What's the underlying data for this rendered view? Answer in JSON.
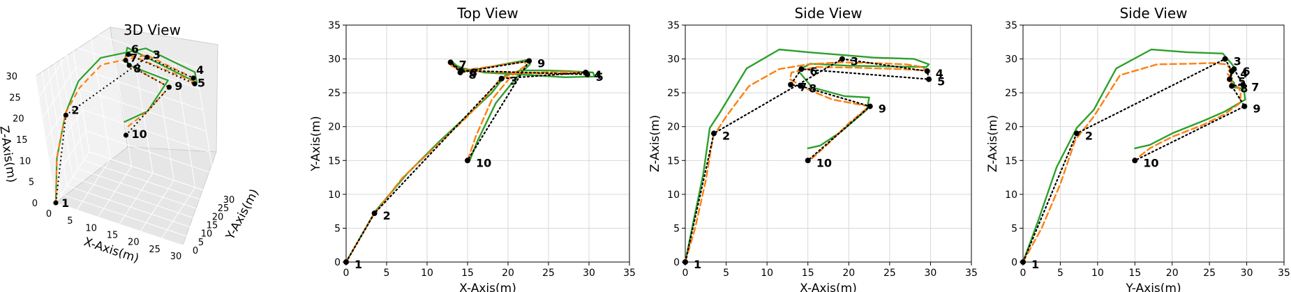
{
  "chart_data": [
    {
      "type": "line",
      "projection": "3d",
      "title": "3D View",
      "xlabel": "X-Axis(m)",
      "ylabel": "Y-Axis(m)",
      "zlabel": "Z-Axis(m)",
      "xlim": [
        0,
        30
      ],
      "ylim": [
        0,
        30
      ],
      "zlim": [
        0,
        30
      ],
      "xticks": [
        0,
        5,
        10,
        15,
        20,
        25,
        30
      ],
      "yticks": [
        0,
        5,
        10,
        15,
        20,
        25,
        30
      ],
      "zticks": [
        0,
        5,
        10,
        15,
        20,
        25,
        30
      ],
      "grid": true,
      "waypoints": [
        {
          "label": "1",
          "x": 0,
          "y": 0,
          "z": 0
        },
        {
          "label": "2",
          "x": 3.5,
          "y": 7.2,
          "z": 19
        },
        {
          "label": "3",
          "x": 19.2,
          "y": 27.1,
          "z": 30
        },
        {
          "label": "4",
          "x": 29.6,
          "y": 28,
          "z": 28.2
        },
        {
          "label": "5",
          "x": 29.8,
          "y": 27.7,
          "z": 27
        },
        {
          "label": "6",
          "x": 14.2,
          "y": 28.3,
          "z": 28.5
        },
        {
          "label": "7",
          "x": 12.9,
          "y": 29.5,
          "z": 26.2
        },
        {
          "label": "8",
          "x": 14.1,
          "y": 28,
          "z": 26
        },
        {
          "label": "9",
          "x": 22.6,
          "y": 29.7,
          "z": 23
        },
        {
          "label": "10",
          "x": 15,
          "y": 15,
          "z": 15
        }
      ],
      "series": [
        {
          "role": "reference",
          "color": "#000000",
          "style": "dotted"
        },
        {
          "role": "path-a",
          "color": "#ff7f0e",
          "style": "dashed"
        },
        {
          "role": "path-b",
          "color": "#2ca02c",
          "style": "solid"
        }
      ]
    },
    {
      "type": "line",
      "title": "Top View",
      "xlabel": "X-Axis(m)",
      "ylabel": "Y-Axis(m)",
      "xlim": [
        0,
        35
      ],
      "ylim": [
        0,
        35
      ],
      "xticks": [
        0,
        5,
        10,
        15,
        20,
        25,
        30,
        35
      ],
      "yticks": [
        0,
        5,
        10,
        15,
        20,
        25,
        30,
        35
      ],
      "grid": true,
      "points": [
        {
          "label": "1",
          "x": 0,
          "y": 0
        },
        {
          "label": "2",
          "x": 3.5,
          "y": 7.2
        },
        {
          "label": "3",
          "x": 19.2,
          "y": 27.1
        },
        {
          "label": "4",
          "x": 29.6,
          "y": 28
        },
        {
          "label": "5",
          "x": 29.8,
          "y": 27.7
        },
        {
          "label": "6",
          "x": 14.2,
          "y": 28.3
        },
        {
          "label": "7",
          "x": 12.9,
          "y": 29.5
        },
        {
          "label": "8",
          "x": 14.1,
          "y": 28
        },
        {
          "label": "9",
          "x": 22.6,
          "y": 29.7
        },
        {
          "label": "10",
          "x": 15,
          "y": 15
        }
      ],
      "series": [
        {
          "role": "reference",
          "color": "#000000",
          "style": "dotted",
          "x": [
            0,
            3.5,
            19.2,
            29.6,
            29.8,
            14.2,
            12.9,
            14.1,
            22.6,
            15
          ],
          "y": [
            0,
            7.2,
            27.1,
            28,
            27.7,
            28.3,
            29.5,
            28,
            29.7,
            15
          ]
        },
        {
          "role": "path-a",
          "color": "#ff7f0e",
          "style": "dashed",
          "x": [
            0,
            3.4,
            7,
            11,
            15,
            17.3,
            19,
            20.5,
            24,
            27,
            29.5,
            29.6,
            26,
            22,
            16,
            14.2,
            13,
            12.9,
            14.3,
            18,
            22,
            22.3,
            20.5,
            18,
            16,
            15
          ],
          "y": [
            0,
            7,
            12.5,
            17,
            21.5,
            24.5,
            27,
            27.8,
            28,
            28.1,
            28,
            27.9,
            27.8,
            27.9,
            28.2,
            28.3,
            29,
            29.3,
            28.3,
            28.9,
            29.6,
            29.1,
            27.6,
            24,
            18.5,
            15
          ]
        },
        {
          "role": "path-b",
          "color": "#2ca02c",
          "style": "solid",
          "x": [
            0,
            3.6,
            7.5,
            11.5,
            15.5,
            18,
            19.6,
            21.5,
            24.5,
            27.5,
            30.5,
            30.7,
            27,
            23,
            17,
            14.5,
            13.2,
            13.1,
            14.5,
            18.5,
            22.6,
            22.7,
            21,
            18.5,
            16.2,
            15.3
          ],
          "y": [
            0,
            7.5,
            13,
            17.8,
            22.2,
            25,
            27.5,
            28.3,
            28.3,
            28.2,
            28,
            27.4,
            27.3,
            27.6,
            28,
            28.6,
            29.2,
            29.6,
            28.1,
            29,
            29.9,
            29.2,
            27.2,
            23.5,
            17.8,
            15.1
          ]
        }
      ]
    },
    {
      "type": "line",
      "title": "Side View",
      "xlabel": "X-Axis(m)",
      "ylabel": "Z-Axis(m)",
      "xlim": [
        0,
        35
      ],
      "ylim": [
        0,
        35
      ],
      "xticks": [
        0,
        5,
        10,
        15,
        20,
        25,
        30,
        35
      ],
      "yticks": [
        0,
        5,
        10,
        15,
        20,
        25,
        30,
        35
      ],
      "grid": true,
      "points": [
        {
          "label": "1",
          "x": 0,
          "y": 0
        },
        {
          "label": "2",
          "x": 3.5,
          "y": 19
        },
        {
          "label": "3",
          "x": 19.2,
          "y": 30
        },
        {
          "label": "4",
          "x": 29.6,
          "y": 28.2
        },
        {
          "label": "5",
          "x": 29.8,
          "y": 27
        },
        {
          "label": "6",
          "x": 14.2,
          "y": 28.5
        },
        {
          "label": "7",
          "x": 12.9,
          "y": 26.2
        },
        {
          "label": "8",
          "x": 14.1,
          "y": 26
        },
        {
          "label": "9",
          "x": 22.6,
          "y": 23
        },
        {
          "label": "10",
          "x": 15,
          "y": 15
        }
      ],
      "series": [
        {
          "role": "reference",
          "color": "#000000",
          "style": "dotted",
          "x": [
            0,
            3.5,
            19.2,
            29.6,
            29.8,
            14.2,
            12.9,
            14.1,
            22.6,
            15
          ],
          "y": [
            0,
            19,
            30,
            28.2,
            27,
            28.5,
            26.2,
            26,
            23,
            15
          ]
        },
        {
          "role": "path-a",
          "color": "#ff7f0e",
          "style": "dashed",
          "x": [
            0,
            1.2,
            2.5,
            3.4,
            5,
            7.8,
            11.5,
            15,
            19,
            23,
            27,
            29,
            29.5,
            26,
            21,
            16,
            13,
            12.8,
            15,
            18,
            22.5,
            20,
            17.5,
            15.5
          ],
          "y": [
            0,
            5,
            12,
            18.5,
            21.5,
            26,
            28.5,
            29.2,
            29.5,
            29.4,
            29.2,
            28.8,
            28.3,
            28.5,
            28.7,
            28.8,
            28,
            27,
            25.5,
            24,
            23,
            20.5,
            17.5,
            15.3
          ]
        },
        {
          "role": "path-b",
          "color": "#2ca02c",
          "style": "solid",
          "x": [
            0,
            1,
            2.2,
            3,
            4.2,
            7.5,
            11.5,
            15,
            19,
            23,
            28,
            29.8,
            29.5,
            25,
            20,
            15.3,
            13.8,
            15.5,
            19.5,
            22.5,
            22.2,
            19,
            16.5,
            15
          ],
          "y": [
            0,
            6,
            13,
            19.8,
            22,
            28.6,
            31.4,
            31,
            30.6,
            30.2,
            30,
            29.2,
            28.8,
            28.9,
            29,
            29.3,
            28.3,
            25.8,
            24.5,
            24.3,
            22.5,
            19.2,
            17.2,
            16.8
          ]
        }
      ]
    },
    {
      "type": "line",
      "title": "Side View",
      "xlabel": "Y-Axis(m)",
      "ylabel": "Z-Axis(m)",
      "xlim": [
        0,
        35
      ],
      "ylim": [
        0,
        35
      ],
      "xticks": [
        0,
        5,
        10,
        15,
        20,
        25,
        30,
        35
      ],
      "yticks": [
        0,
        5,
        10,
        15,
        20,
        25,
        30,
        35
      ],
      "grid": true,
      "points": [
        {
          "label": "1",
          "x": 0,
          "y": 0
        },
        {
          "label": "2",
          "x": 7.2,
          "y": 19
        },
        {
          "label": "3",
          "x": 27.1,
          "y": 30
        },
        {
          "label": "4",
          "x": 28,
          "y": 28.2
        },
        {
          "label": "5",
          "x": 27.7,
          "y": 27
        },
        {
          "label": "6",
          "x": 28.3,
          "y": 28.5
        },
        {
          "label": "7",
          "x": 29.5,
          "y": 26.2
        },
        {
          "label": "8",
          "x": 28,
          "y": 26
        },
        {
          "label": "9",
          "x": 29.7,
          "y": 23
        },
        {
          "label": "10",
          "x": 15,
          "y": 15
        }
      ],
      "series": [
        {
          "role": "reference",
          "color": "#000000",
          "style": "dotted",
          "x": [
            0,
            7.2,
            27.1,
            28,
            27.7,
            28.3,
            29.5,
            28,
            29.7,
            15
          ],
          "y": [
            0,
            19,
            30,
            28.2,
            27,
            28.5,
            26.2,
            26,
            23,
            15
          ]
        },
        {
          "role": "path-a",
          "color": "#ff7f0e",
          "style": "dashed",
          "x": [
            0,
            2.5,
            5,
            7,
            9.5,
            13,
            18,
            22.5,
            25.5,
            27.2,
            27.8,
            27.4,
            28.2,
            27.8,
            28.9,
            29.2,
            29.1,
            27,
            24,
            20,
            17,
            15.5
          ],
          "y": [
            0,
            5,
            11.5,
            18,
            21.5,
            27.6,
            29.2,
            29.3,
            29.4,
            29.2,
            28.6,
            27.8,
            27,
            26.2,
            25.8,
            25,
            23.5,
            21.8,
            20.2,
            18.5,
            16.8,
            15.5
          ]
        },
        {
          "role": "path-b",
          "color": "#2ca02c",
          "style": "solid",
          "x": [
            0,
            2,
            4.5,
            7.2,
            9.5,
            12.5,
            17.2,
            22,
            26.8,
            27.4,
            27.9,
            28.3,
            28.2,
            27.6,
            28.3,
            28.4,
            29.6,
            29.8,
            27,
            24.5,
            20,
            17,
            15
          ],
          "y": [
            0,
            6,
            14,
            19.8,
            22.5,
            28.6,
            31.4,
            31,
            30.8,
            30,
            29.4,
            28.8,
            28,
            27.2,
            26.5,
            25.8,
            25.6,
            24,
            22.2,
            21,
            19,
            17.3,
            16.8
          ]
        }
      ]
    }
  ]
}
